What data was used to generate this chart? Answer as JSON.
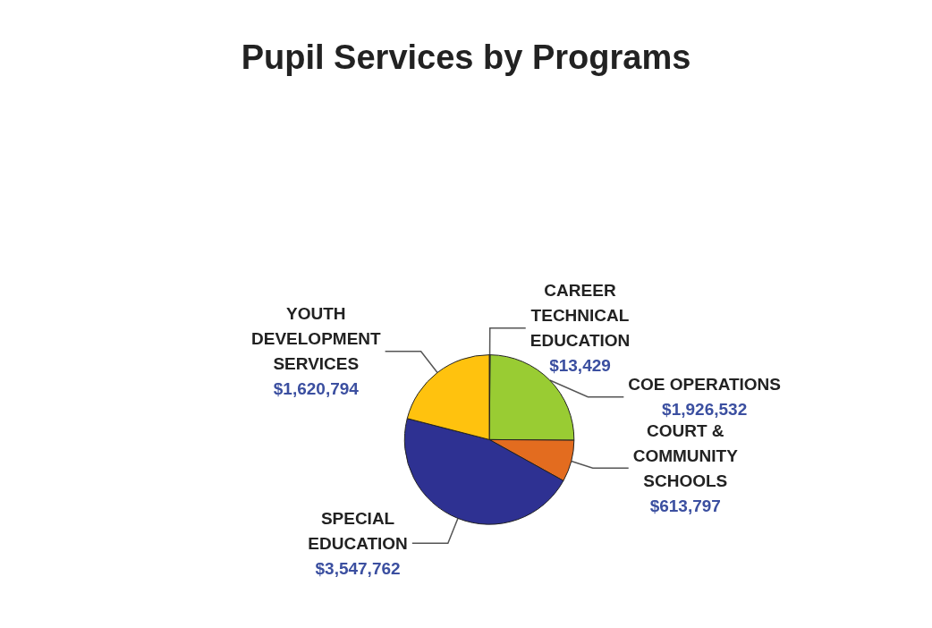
{
  "chart_data": {
    "type": "pie",
    "title": "Pupil Services by Programs",
    "categories": [
      "CAREER TECHNICAL EDUCATION",
      "COE OPERATIONS",
      "COURT & COMMUNITY SCHOOLS",
      "SPECIAL EDUCATION",
      "YOUTH DEVELOPMENT SERVICES"
    ],
    "values": [
      13429,
      1926532,
      613797,
      3547762,
      1620794
    ],
    "value_labels": [
      "$13,429",
      "$1,926,532",
      "$613,797",
      "$3,547,762",
      "$1,620,794"
    ],
    "colors": [
      "#4f6bbf",
      "#99cc33",
      "#e36c1f",
      "#2e3192",
      "#ffc20e"
    ]
  }
}
